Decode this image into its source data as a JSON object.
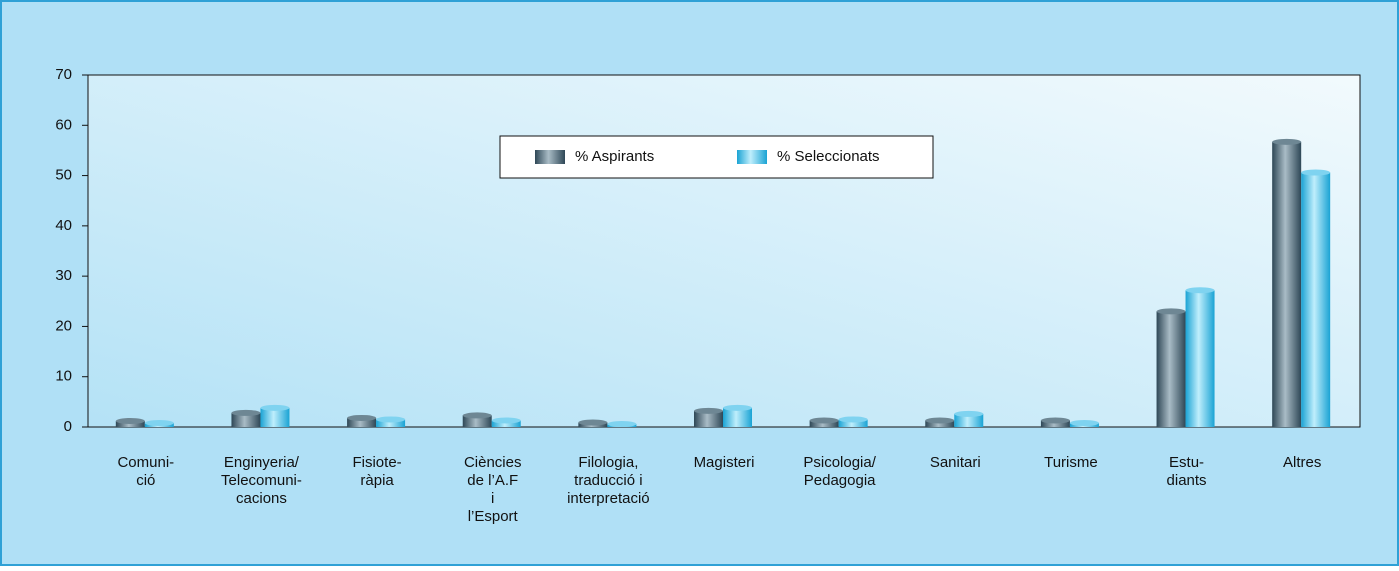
{
  "chart_data": {
    "type": "bar",
    "categories": [
      [
        "Comuni-",
        "ció"
      ],
      [
        "Enginyeria/",
        "Telecomuni-",
        "cacions"
      ],
      [
        "Fisiote-",
        "ràpia"
      ],
      [
        "Ciències",
        "de l’A.F",
        "i",
        "l’Esport"
      ],
      [
        "Filologia,",
        "traducció i",
        "interpretació"
      ],
      [
        "Magisteri"
      ],
      [
        "Psicologia/",
        "Pedagogia"
      ],
      [
        "Sanitari"
      ],
      [
        "Turisme"
      ],
      [
        "Estu-",
        "diants"
      ],
      [
        "Altres"
      ]
    ],
    "series": [
      {
        "name": "% Aspirants",
        "color": "#2e4756",
        "values": [
          1.2,
          2.8,
          1.8,
          2.3,
          0.9,
          3.2,
          1.3,
          1.3,
          1.3,
          23,
          56.7
        ]
      },
      {
        "name": "% Seleccionats",
        "color": "#1aa3d4",
        "values": [
          0.8,
          3.8,
          1.5,
          1.3,
          0.6,
          3.8,
          1.5,
          2.6,
          0.8,
          27.2,
          50.6
        ]
      }
    ],
    "ylim": [
      0,
      70
    ],
    "yticks": [
      0,
      10,
      20,
      30,
      40,
      50,
      60,
      70
    ],
    "grid": false,
    "legend": "top"
  }
}
